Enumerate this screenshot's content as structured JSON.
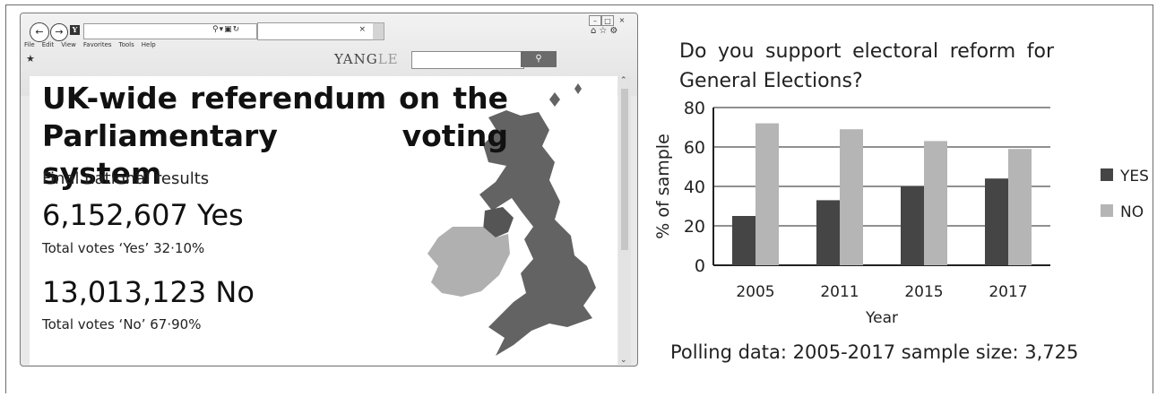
{
  "browser": {
    "menu": [
      "File",
      "Edit",
      "View",
      "Favorites",
      "Tools",
      "Help"
    ],
    "brand": {
      "main": "YANG",
      "faded": "LE"
    },
    "search_placeholder": "",
    "address": "",
    "icons": {
      "back": "back-arrow-icon",
      "forward": "forward-arrow-icon",
      "search": "magnifier-icon",
      "home": "home-icon",
      "favorites": "star-icon",
      "settings": "gear-icon"
    }
  },
  "page": {
    "headline": "UK-wide referendum on the Parliamentary voting system",
    "subhead": "Final national results",
    "yes_count": "6,152,607 Yes",
    "yes_share": "Total votes ‘Yes’ 32·10%",
    "no_count": "13,013,123 No",
    "no_share": "Total votes ‘No’ 67·90%"
  },
  "colors": {
    "yes_bar": "#454545",
    "no_bar": "#b5b5b5",
    "map_gb": "#636363",
    "map_ni": "#555555",
    "map_ireland": "#b0b0b0"
  },
  "chart_data": {
    "type": "bar",
    "title": "Do you support electoral reform for General Elections?",
    "xlabel": "Year",
    "ylabel": "% of sample",
    "categories": [
      "2005",
      "2011",
      "2015",
      "2017"
    ],
    "series": [
      {
        "name": "YES",
        "values": [
          25,
          33,
          40,
          44
        ]
      },
      {
        "name": "NO",
        "values": [
          72,
          69,
          63,
          59
        ]
      }
    ],
    "ylim": [
      0,
      80
    ],
    "yticks": [
      0,
      20,
      40,
      60,
      80
    ],
    "grid": true,
    "legend": "right"
  },
  "caption": "Polling data: 2005-2017 sample size: 3,725"
}
